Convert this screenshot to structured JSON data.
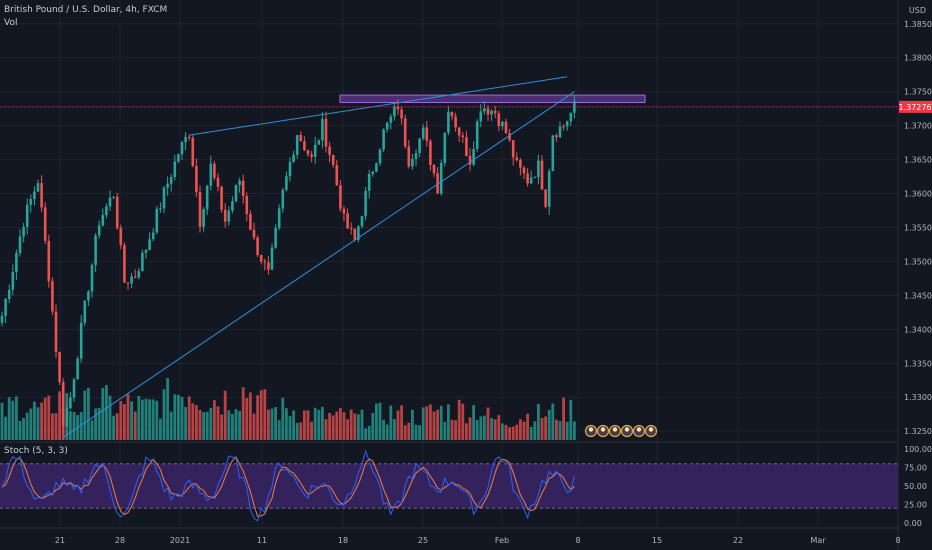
{
  "header": {
    "symbol": "British Pound / U.S. Dollar, 4h, FXCM",
    "volume_label": "Vol",
    "stoch_label": "Stoch (5, 3, 3)",
    "currency": "USD"
  },
  "colors": {
    "background": "#131722",
    "grid": "#1f2330",
    "up": "#26a69a",
    "down": "#ef5350",
    "trendline": "#2f8fd9",
    "zone": "#7b3fbf",
    "price_line": "#f23645",
    "stoch_k": "#2962ff",
    "stoch_d": "#f57c3a",
    "stoch_band": "#3b2466"
  },
  "chart_data": {
    "type": "candlestick",
    "price_axis": {
      "ticks": [
        "1.38500",
        "1.38000",
        "1.37500",
        "1.37000",
        "1.36500",
        "1.36000",
        "1.35500",
        "1.35000",
        "1.34500",
        "1.34000",
        "1.33500",
        "1.33000",
        "1.32500"
      ],
      "ylim": [
        1.3237,
        1.3885
      ]
    },
    "last_price": {
      "label": "1.37276",
      "value": 1.37276
    },
    "x_axis": {
      "ticks": [
        "21",
        "28",
        "2021",
        "11",
        "18",
        "25",
        "Feb",
        "8",
        "15",
        "22",
        "Mar",
        "8"
      ]
    },
    "resistance_zone": {
      "low": 1.3734,
      "high": 1.3745
    },
    "trendlines": [
      {
        "name": "upper",
        "from": {
          "i": 52,
          "price": 1.3686
        },
        "to": {
          "i": 157,
          "price": 1.3772
        }
      },
      {
        "name": "lower",
        "from": {
          "i": 17,
          "price": 1.3241
        },
        "to": {
          "i": 159,
          "price": 1.375
        }
      }
    ],
    "ohlc_anchors": [
      [
        0,
        1.342
      ],
      [
        6,
        1.356
      ],
      [
        10,
        1.362
      ],
      [
        13,
        1.348
      ],
      [
        17,
        1.3265
      ],
      [
        19,
        1.33
      ],
      [
        22,
        1.34
      ],
      [
        27,
        1.356
      ],
      [
        31,
        1.36
      ],
      [
        34,
        1.347
      ],
      [
        37,
        1.348
      ],
      [
        40,
        1.352
      ],
      [
        45,
        1.36
      ],
      [
        49,
        1.366
      ],
      [
        52,
        1.369
      ],
      [
        55,
        1.356
      ],
      [
        58,
        1.364
      ],
      [
        62,
        1.356
      ],
      [
        66,
        1.362
      ],
      [
        70,
        1.353
      ],
      [
        74,
        1.348
      ],
      [
        78,
        1.36
      ],
      [
        82,
        1.369
      ],
      [
        86,
        1.365
      ],
      [
        89,
        1.37
      ],
      [
        92,
        1.364
      ],
      [
        95,
        1.356
      ],
      [
        98,
        1.353
      ],
      [
        102,
        1.362
      ],
      [
        106,
        1.369
      ],
      [
        110,
        1.373
      ],
      [
        113,
        1.365
      ],
      [
        117,
        1.369
      ],
      [
        121,
        1.361
      ],
      [
        124,
        1.373
      ],
      [
        127,
        1.369
      ],
      [
        130,
        1.365
      ],
      [
        133,
        1.373
      ],
      [
        137,
        1.372
      ],
      [
        140,
        1.369
      ],
      [
        143,
        1.364
      ],
      [
        146,
        1.362
      ],
      [
        149,
        1.364
      ],
      [
        151,
        1.359
      ],
      [
        153,
        1.369
      ],
      [
        156,
        1.37
      ],
      [
        159,
        1.3727
      ]
    ],
    "volume_axis": {
      "ylim": [
        0,
        100
      ]
    },
    "volume_anchors": [
      [
        0,
        25
      ],
      [
        4,
        35
      ],
      [
        8,
        30
      ],
      [
        12,
        28
      ],
      [
        16,
        40
      ],
      [
        20,
        30
      ],
      [
        24,
        35
      ],
      [
        28,
        38
      ],
      [
        32,
        30
      ],
      [
        36,
        35
      ],
      [
        40,
        30
      ],
      [
        44,
        36
      ],
      [
        48,
        45
      ],
      [
        52,
        48
      ],
      [
        56,
        40
      ],
      [
        60,
        38
      ],
      [
        64,
        42
      ],
      [
        68,
        48
      ],
      [
        72,
        36
      ],
      [
        76,
        28
      ],
      [
        80,
        30
      ],
      [
        84,
        25
      ],
      [
        88,
        24
      ],
      [
        92,
        22
      ],
      [
        96,
        22
      ],
      [
        100,
        20
      ],
      [
        104,
        24
      ],
      [
        108,
        26
      ],
      [
        112,
        23
      ],
      [
        116,
        22
      ],
      [
        120,
        28
      ],
      [
        124,
        28
      ],
      [
        128,
        30
      ],
      [
        132,
        30
      ],
      [
        136,
        20
      ],
      [
        140,
        18
      ],
      [
        144,
        22
      ],
      [
        148,
        24
      ],
      [
        152,
        25
      ],
      [
        156,
        28
      ],
      [
        159,
        30
      ]
    ],
    "stoch": {
      "ylim": [
        0,
        100
      ],
      "levels": [
        20,
        80
      ],
      "ticks": [
        "100.00",
        "75.00",
        "50.00",
        "25.00",
        "0.00"
      ]
    }
  }
}
